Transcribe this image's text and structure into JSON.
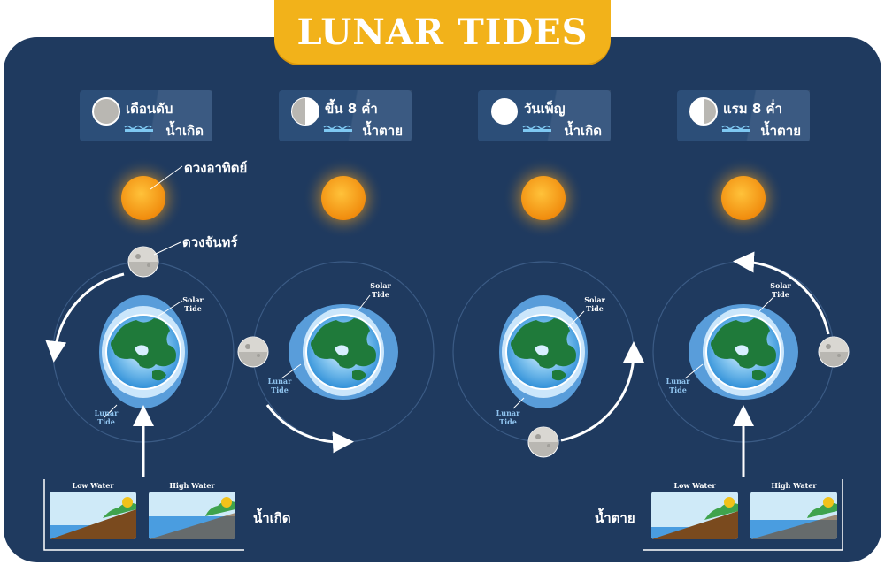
{
  "title": "LUNAR TIDES",
  "phases": [
    {
      "name": "เดือนดับ",
      "tide": "น้ำเกิด",
      "moon_phase": "new"
    },
    {
      "name": "ขึ้น 8 ค่ำ",
      "tide": "น้ำตาย",
      "moon_phase": "first-quarter"
    },
    {
      "name": "วันเพ็ญ",
      "tide": "น้ำเกิด",
      "moon_phase": "full"
    },
    {
      "name": "แรม 8 ค่ำ",
      "tide": "น้ำตาย",
      "moon_phase": "last-quarter"
    }
  ],
  "callouts": {
    "sun": "ดวงอาทิตย์",
    "moon": "ดวงจันทร์"
  },
  "tide_labels": {
    "solar": "Solar\nTide",
    "lunar": "Lunar\nTide"
  },
  "water": {
    "low": "Low Water",
    "high": "High Water",
    "left_caption": "น้ำเกิด",
    "right_caption": "น้ำตาย"
  },
  "colors": {
    "background": "#1f3a5f",
    "title_bar": "#f2b21a",
    "sun": "#f7a21b",
    "earth_water": "#2f8fd8",
    "land": "#1f7a3a",
    "tide_bulge": "#5fa8e8"
  }
}
